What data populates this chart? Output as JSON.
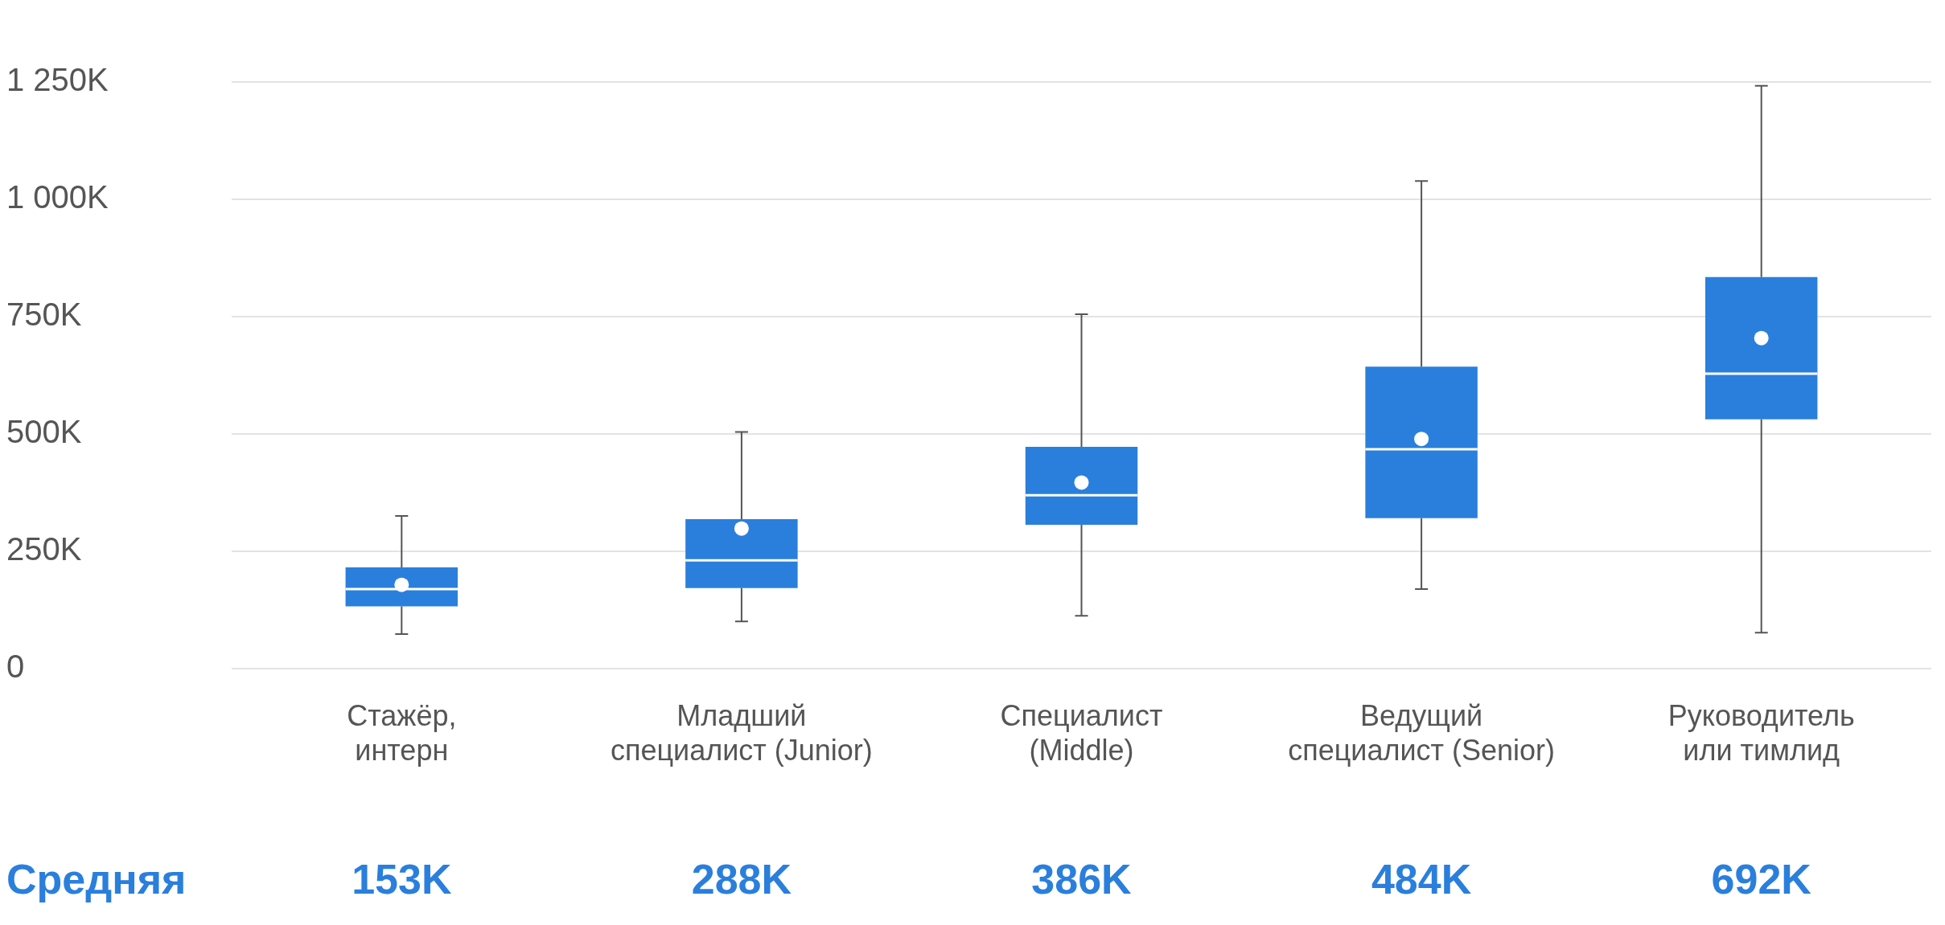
{
  "chart_data": {
    "type": "box",
    "categories": [
      "Стажёр, интерн",
      "Младший специалист (Junior)",
      "Специалист (Middle)",
      "Ведущий специалист (Senior)",
      "Руководитель или тимлид"
    ],
    "color": "#2a7fdc",
    "boxes": [
      {
        "low": 73,
        "q1": 132,
        "median": 169,
        "q3": 215,
        "high": 325,
        "mean": 178
      },
      {
        "low": 100,
        "q1": 171,
        "median": 230,
        "q3": 318,
        "high": 504,
        "mean": 298
      },
      {
        "low": 112,
        "q1": 306,
        "median": 369,
        "q3": 472,
        "high": 755,
        "mean": 396
      },
      {
        "low": 169,
        "q1": 320,
        "median": 467,
        "q3": 643,
        "high": 1039,
        "mean": 489
      },
      {
        "low": 76,
        "q1": 531,
        "median": 628,
        "q3": 834,
        "high": 1242,
        "mean": 704
      }
    ],
    "ylim": [
      0,
      1250
    ],
    "yticks": [
      {
        "value": 0,
        "label": "0"
      },
      {
        "value": 250,
        "label": "250K"
      },
      {
        "value": 500,
        "label": "500K"
      },
      {
        "value": 750,
        "label": "750K"
      },
      {
        "value": 1000,
        "label": "1 000K"
      },
      {
        "value": 1250,
        "label": "1 250K"
      }
    ],
    "grid": "y",
    "legend": false,
    "annotations": [
      "Средняя",
      "153K",
      "288K",
      "386K",
      "484K",
      "692K"
    ]
  }
}
